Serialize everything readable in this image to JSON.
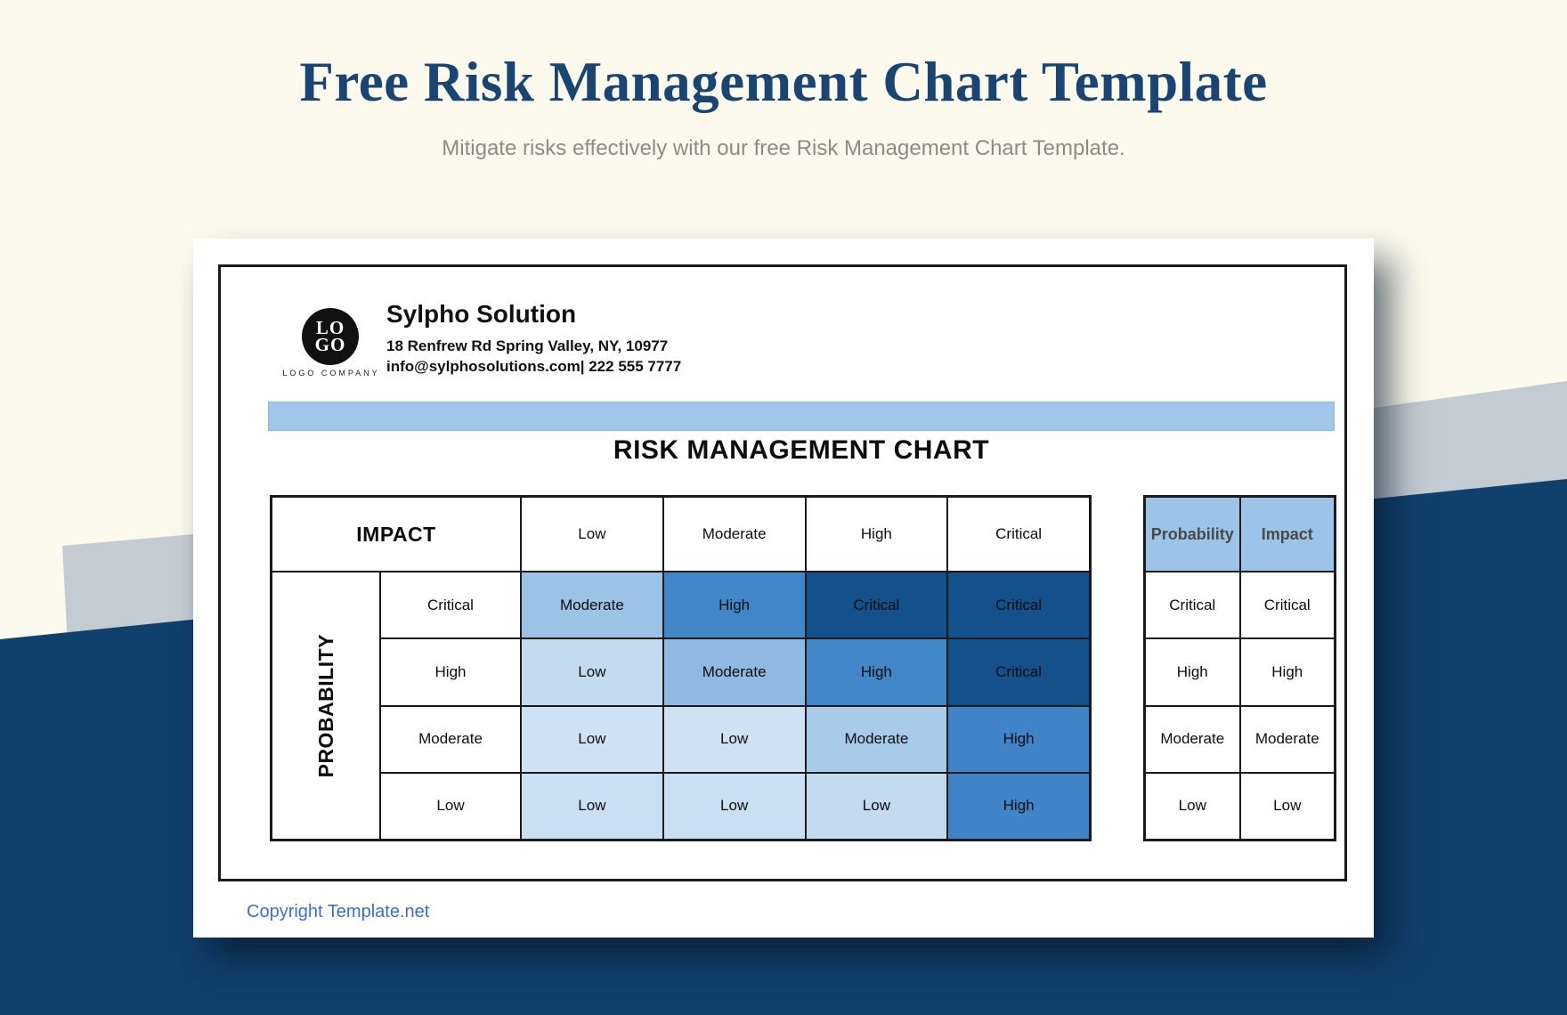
{
  "page": {
    "title": "Free Risk Management Chart Template",
    "subtitle": "Mitigate risks effectively with our free Risk Management Chart Template.",
    "copyright": "Copyright Template.net"
  },
  "company": {
    "logo_line1": "LO",
    "logo_line2": "GO",
    "logo_caption": "LOGO COMPANY",
    "name": "Sylpho Solution",
    "address": "18 Renfrew Rd Spring Valley, NY, 10977",
    "contact": "info@sylphosolutions.com| 222 555 7777"
  },
  "document": {
    "heading": "RISK MANAGEMENT CHART"
  },
  "matrix": {
    "corner_label": "IMPACT",
    "axis_label": "PROBABILITY",
    "columns": [
      "Low",
      "Moderate",
      "High",
      "Critical"
    ],
    "rows": [
      {
        "label": "Critical",
        "cells": [
          {
            "label": "Moderate",
            "bg": "#9CC2E5"
          },
          {
            "label": "High",
            "bg": "#4187C7"
          },
          {
            "label": "Critical",
            "bg": "#14508C"
          },
          {
            "label": "Critical",
            "bg": "#14508C"
          }
        ]
      },
      {
        "label": "High",
        "cells": [
          {
            "label": "Low",
            "bg": "#C3DAEF"
          },
          {
            "label": "Moderate",
            "bg": "#8FB9E2"
          },
          {
            "label": "High",
            "bg": "#4187C7"
          },
          {
            "label": "Critical",
            "bg": "#14508C"
          }
        ]
      },
      {
        "label": "Moderate",
        "cells": [
          {
            "label": "Low",
            "bg": "#CFE2F4"
          },
          {
            "label": "Low",
            "bg": "#CFE2F4"
          },
          {
            "label": "Moderate",
            "bg": "#A9CBEA"
          },
          {
            "label": "High",
            "bg": "#3E84C6"
          }
        ]
      },
      {
        "label": "Low",
        "cells": [
          {
            "label": "Low",
            "bg": "#CBDFF2"
          },
          {
            "label": "Low",
            "bg": "#CBDFF2"
          },
          {
            "label": "Low",
            "bg": "#C3DAEF"
          },
          {
            "label": "High",
            "bg": "#3E84C6"
          }
        ]
      }
    ]
  },
  "legend": {
    "headers": [
      {
        "label": "Probability",
        "bg": "#9CC3E8"
      },
      {
        "label": "Impact",
        "bg": "#9CC3E8"
      }
    ],
    "rows": [
      {
        "probability": "Critical",
        "impact": "Critical"
      },
      {
        "probability": "High",
        "impact": "High"
      },
      {
        "probability": "Moderate",
        "impact": "Moderate"
      },
      {
        "probability": "Low",
        "impact": "Low"
      }
    ]
  },
  "colors": {
    "cream_background": "#FBFAEC",
    "navy_background": "#10406C",
    "gray_band": "#C3CCD2",
    "accent_bar": "#A1C6E9",
    "title_text": "#1A4572",
    "copyright_text": "#3D6BD8"
  }
}
